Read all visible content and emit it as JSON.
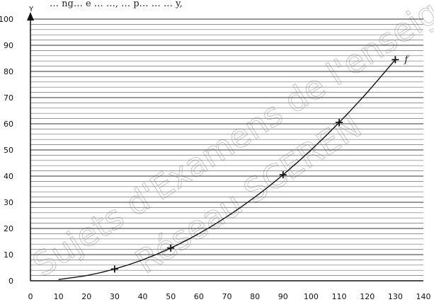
{
  "header": {
    "top_text": "… ng… e … …, … p… … … y,"
  },
  "watermark": {
    "line1": "Sujets d'Examens de l'enseignement",
    "line2": "Réseau SCEREN"
  },
  "chart_data": {
    "type": "line",
    "title": "",
    "xlabel": "",
    "ylabel": "Y",
    "xlim": [
      0,
      140
    ],
    "ylim": [
      0,
      100
    ],
    "x_ticks": [
      0,
      10,
      20,
      30,
      40,
      50,
      60,
      70,
      80,
      90,
      100,
      110,
      120,
      130,
      140
    ],
    "y_ticks": [
      0,
      10,
      20,
      30,
      40,
      50,
      60,
      70,
      80,
      90,
      100
    ],
    "grid": true,
    "series": [
      {
        "name": "f",
        "curve_x": [
          10,
          20,
          30,
          40,
          50,
          60,
          70,
          80,
          90,
          100,
          110,
          120,
          130
        ],
        "curve_y": [
          0.5,
          2,
          4.5,
          8,
          12.5,
          18,
          24.5,
          32,
          40.5,
          50,
          60.5,
          72,
          84.5
        ],
        "markers": [
          {
            "x": 30,
            "y": 4.5
          },
          {
            "x": 50,
            "y": 12.5
          },
          {
            "x": 90,
            "y": 40.5
          },
          {
            "x": 110,
            "y": 60.5
          },
          {
            "x": 130,
            "y": 84.5
          }
        ],
        "color": "#111111"
      }
    ]
  }
}
